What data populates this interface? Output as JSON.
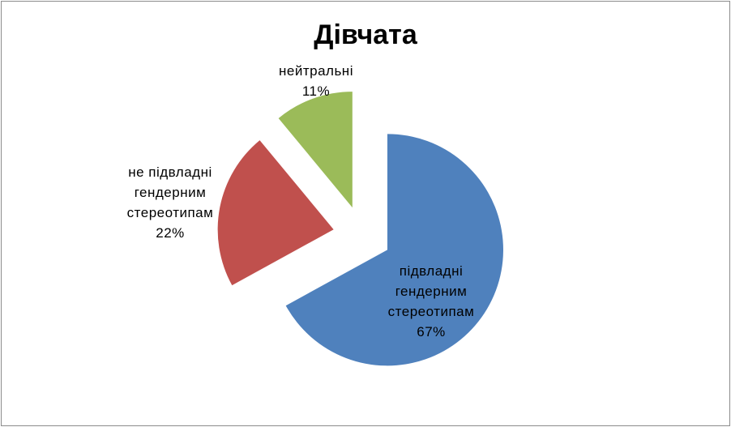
{
  "chart_data": {
    "type": "pie",
    "title": "Дівчата",
    "categories": [
      "підвладні гендерним стереотипам",
      "не підвладні гендерним стереотипам",
      "нейтральні"
    ],
    "values": [
      67,
      22,
      11
    ],
    "value_labels": [
      "67%",
      "22%",
      "11%"
    ],
    "colors": [
      "#4f81bd",
      "#c0504d",
      "#9bbb59"
    ]
  }
}
